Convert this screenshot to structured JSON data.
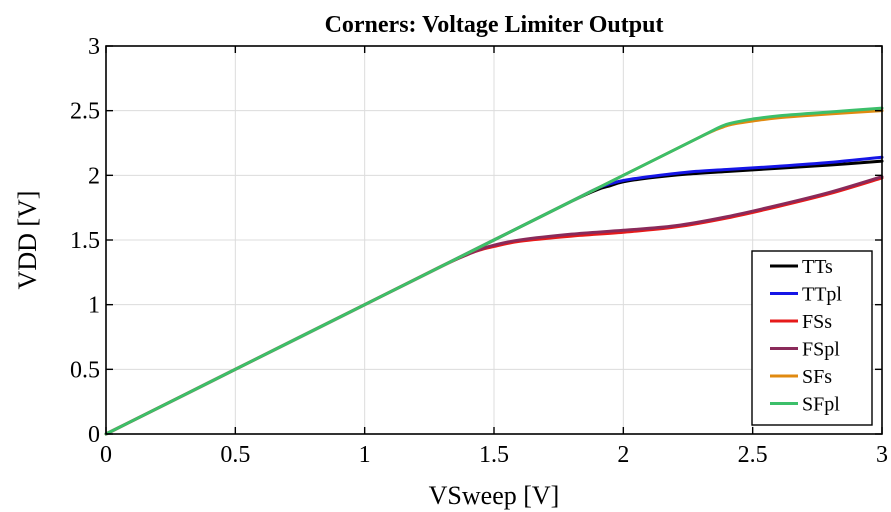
{
  "chart_data": {
    "type": "line",
    "title": "Corners: Voltage Limiter Output",
    "xlabel": "VSweep [V]",
    "ylabel": "VDD [V]",
    "xlim": [
      0,
      3
    ],
    "ylim": [
      0,
      3
    ],
    "xticks": [
      0,
      0.5,
      1,
      1.5,
      2,
      2.5,
      3
    ],
    "xtick_labels": [
      "0",
      "0.5",
      "1",
      "1.5",
      "2",
      "2.5",
      "3"
    ],
    "yticks": [
      0,
      0.5,
      1,
      1.5,
      2,
      2.5,
      3
    ],
    "ytick_labels": [
      "0",
      "0.5",
      "1",
      "1.5",
      "2",
      "2.5",
      "3"
    ],
    "grid": true,
    "legend_position": "bottom-right",
    "series": [
      {
        "name": "TTs",
        "color": "#000000",
        "x": [
          0,
          0.5,
          1,
          1.5,
          1.8,
          1.9,
          1.95,
          2.0,
          2.1,
          2.25,
          2.4,
          2.6,
          2.8,
          3.0
        ],
        "y": [
          0,
          0.5,
          1,
          1.5,
          1.8,
          1.89,
          1.92,
          1.95,
          1.98,
          2.01,
          2.03,
          2.055,
          2.08,
          2.11
        ]
      },
      {
        "name": "TTpl",
        "color": "#1515e6",
        "x": [
          0,
          0.5,
          1,
          1.5,
          1.8,
          1.9,
          1.95,
          2.0,
          2.1,
          2.25,
          2.4,
          2.6,
          2.8,
          3.0
        ],
        "y": [
          0,
          0.5,
          1,
          1.5,
          1.8,
          1.9,
          1.935,
          1.96,
          1.99,
          2.025,
          2.045,
          2.07,
          2.1,
          2.14
        ]
      },
      {
        "name": "FSs",
        "color": "#e61a1a",
        "x": [
          0,
          0.5,
          1,
          1.3,
          1.4,
          1.45,
          1.5,
          1.6,
          1.8,
          2.0,
          2.2,
          2.4,
          2.6,
          2.8,
          3.0
        ],
        "y": [
          0,
          0.5,
          1,
          1.3,
          1.39,
          1.425,
          1.45,
          1.49,
          1.53,
          1.56,
          1.6,
          1.67,
          1.76,
          1.86,
          1.98
        ]
      },
      {
        "name": "FSpl",
        "color": "#8a2a5a",
        "x": [
          0,
          0.5,
          1,
          1.3,
          1.4,
          1.45,
          1.5,
          1.6,
          1.8,
          2.0,
          2.2,
          2.4,
          2.6,
          2.8,
          3.0
        ],
        "y": [
          0,
          0.5,
          1,
          1.3,
          1.39,
          1.43,
          1.46,
          1.5,
          1.545,
          1.575,
          1.61,
          1.68,
          1.77,
          1.87,
          1.99
        ]
      },
      {
        "name": "SFs",
        "color": "#e08a10",
        "x": [
          0,
          0.5,
          1,
          1.5,
          2.0,
          2.3,
          2.38,
          2.42,
          2.5,
          2.6,
          2.8,
          3.0
        ],
        "y": [
          0,
          0.5,
          1,
          1.5,
          2.0,
          2.3,
          2.37,
          2.395,
          2.42,
          2.445,
          2.475,
          2.5
        ]
      },
      {
        "name": "SFpl",
        "color": "#3cbf6a",
        "x": [
          0,
          0.5,
          1,
          1.5,
          2.0,
          2.3,
          2.38,
          2.42,
          2.5,
          2.6,
          2.8,
          3.0
        ],
        "y": [
          0,
          0.5,
          1,
          1.5,
          2.0,
          2.3,
          2.38,
          2.405,
          2.435,
          2.46,
          2.49,
          2.52
        ]
      }
    ]
  }
}
